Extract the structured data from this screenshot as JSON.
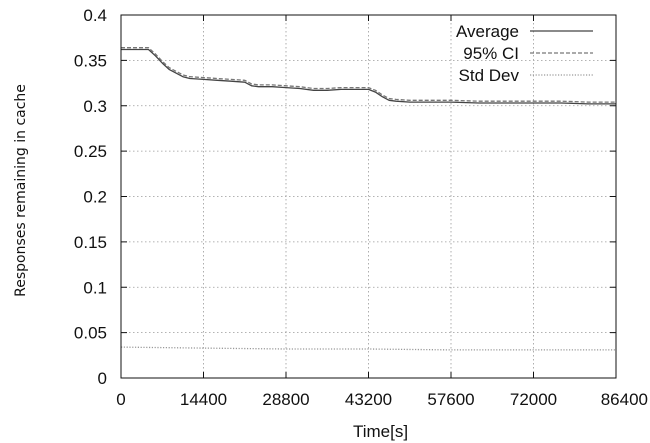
{
  "chart_data": {
    "type": "line",
    "title": "",
    "xlabel": "Time[s]",
    "ylabel": "Responses remaining in cache",
    "xlim": [
      0,
      86400
    ],
    "ylim": [
      0,
      0.4
    ],
    "x_ticks": [
      "0",
      "14400",
      "28800",
      "43200",
      "57600",
      "72000",
      "86400"
    ],
    "y_ticks": [
      "0",
      "0.05",
      "0.1",
      "0.15",
      "0.2",
      "0.25",
      "0.3",
      "0.35",
      "0.4"
    ],
    "grid": true,
    "legend_position": "top-right",
    "series": [
      {
        "name": "Average",
        "style": "solid",
        "color": "#444444",
        "x": [
          0,
          2400,
          4800,
          6000,
          7200,
          8400,
          9600,
          10800,
          12000,
          14400,
          16800,
          19200,
          21600,
          22800,
          24000,
          26400,
          28800,
          31200,
          33600,
          36000,
          38400,
          40800,
          43200,
          44400,
          45600,
          46800,
          48000,
          50400,
          52800,
          57600,
          62400,
          67200,
          72000,
          76800,
          81600,
          86400
        ],
        "y": [
          0.362,
          0.362,
          0.362,
          0.355,
          0.347,
          0.34,
          0.336,
          0.332,
          0.33,
          0.329,
          0.328,
          0.327,
          0.326,
          0.322,
          0.321,
          0.321,
          0.32,
          0.319,
          0.317,
          0.317,
          0.318,
          0.318,
          0.318,
          0.315,
          0.31,
          0.306,
          0.305,
          0.304,
          0.304,
          0.304,
          0.303,
          0.303,
          0.303,
          0.303,
          0.302,
          0.302
        ]
      },
      {
        "name": "95% CI",
        "style": "dashed",
        "color": "#777777",
        "x": [
          0,
          2400,
          4800,
          6000,
          7200,
          8400,
          9600,
          10800,
          12000,
          14400,
          16800,
          19200,
          21600,
          22800,
          24000,
          26400,
          28800,
          31200,
          33600,
          36000,
          38400,
          40800,
          43200,
          44400,
          45600,
          46800,
          48000,
          50400,
          52800,
          57600,
          62400,
          67200,
          72000,
          76800,
          81600,
          86400
        ],
        "y": [
          0.364,
          0.364,
          0.364,
          0.357,
          0.349,
          0.342,
          0.338,
          0.334,
          0.332,
          0.331,
          0.33,
          0.329,
          0.328,
          0.324,
          0.323,
          0.323,
          0.322,
          0.321,
          0.319,
          0.319,
          0.32,
          0.32,
          0.32,
          0.317,
          0.312,
          0.308,
          0.307,
          0.306,
          0.306,
          0.306,
          0.305,
          0.305,
          0.305,
          0.305,
          0.304,
          0.304
        ]
      },
      {
        "name": "Std Dev",
        "style": "dotted",
        "color": "#999999",
        "x": [
          0,
          14400,
          28800,
          43200,
          57600,
          72000,
          86400
        ],
        "y": [
          0.034,
          0.033,
          0.032,
          0.032,
          0.031,
          0.031,
          0.031
        ]
      }
    ]
  }
}
